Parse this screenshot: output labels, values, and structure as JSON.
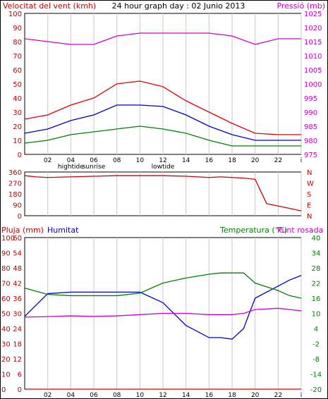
{
  "header": {
    "left_label": "Velocitat del vent (kmh)",
    "title": "24 hour graph day : 02 Junio 2013",
    "right_label": "Pressió (mb)"
  },
  "colors": {
    "wind_max": "#e00000",
    "wind_avg": "#0000c8",
    "wind_min": "#008000",
    "pressure": "#d000d0",
    "direction": "#d00000",
    "humidity": "#0000c8",
    "temperature": "#008000",
    "dew_point": "#d000d0",
    "rain": "#e00000",
    "left_axis": "#c00000",
    "right_axis_pressure": "#c000c0",
    "right_axis_temp": "#008000",
    "grid": "#c8c8c8"
  },
  "x_ticks": [
    "02",
    "04",
    "06",
    "08",
    "10",
    "12",
    "14",
    "16",
    "18",
    "20",
    "22",
    "i"
  ],
  "x_events": [
    "hightide",
    "sunrise",
    "lowtide"
  ],
  "panel2": {
    "direction_labels": [
      "N",
      "W",
      "S",
      "E",
      "N"
    ]
  },
  "panel3": {
    "rain_label": "Pluja (mm)",
    "humidity_label": "Humitat",
    "temp_label": "Temperatura (°C)",
    "dew_label": "Punt rosada"
  },
  "chart_data": [
    {
      "type": "line",
      "title": "24 hour graph day : 02 Junio 2013",
      "x": [
        0,
        2,
        4,
        6,
        8,
        10,
        12,
        14,
        16,
        18,
        20,
        22,
        24
      ],
      "x_tick_labels": [
        "02",
        "04",
        "06",
        "08",
        "10",
        "12",
        "14",
        "16",
        "18",
        "20",
        "22",
        "i"
      ],
      "ylabel": "Velocitat del vent (kmh)",
      "ylim": [
        0,
        100
      ],
      "y_ticks": [
        0,
        10,
        20,
        30,
        40,
        50,
        60,
        70,
        80,
        90,
        100
      ],
      "y2label": "Pressió (mb)",
      "y2lim": [
        975,
        1025
      ],
      "y2_ticks": [
        975,
        980,
        985,
        990,
        995,
        1000,
        1005,
        1010,
        1015,
        1020,
        1025
      ],
      "series": [
        {
          "values": [
            25,
            28,
            35,
            40,
            50,
            52,
            48,
            38,
            30,
            22,
            15,
            14,
            14
          ]
        },
        {
          "values": [
            15,
            18,
            24,
            28,
            35,
            35,
            34,
            28,
            20,
            14,
            10,
            10,
            10
          ]
        },
        {
          "values": [
            8,
            10,
            14,
            16,
            18,
            20,
            18,
            15,
            10,
            6,
            6,
            6,
            6
          ]
        },
        {
          "axis": "right",
          "values": [
            1016,
            1015,
            1014,
            1014,
            1017,
            1018,
            1018,
            1018,
            1018,
            1017,
            1014,
            1016,
            1016
          ]
        }
      ]
    },
    {
      "type": "line",
      "x": [
        0,
        1,
        2,
        4,
        6,
        8,
        10,
        12,
        14,
        16,
        17,
        18,
        19,
        20,
        20.5,
        21,
        22,
        23,
        24
      ],
      "ylim": [
        0,
        360
      ],
      "y_ticks": [
        0,
        90,
        180,
        270,
        360
      ],
      "y2_ticks": [
        "N",
        "W",
        "S",
        "E",
        "N"
      ],
      "series": [
        {
          "values": [
            330,
            320,
            315,
            320,
            325,
            330,
            330,
            330,
            325,
            315,
            320,
            315,
            310,
            300,
            200,
            100,
            80,
            60,
            40
          ]
        }
      ]
    },
    {
      "type": "line",
      "x": [
        0,
        2,
        4,
        6,
        8,
        10,
        12,
        14,
        16,
        17,
        18,
        19,
        20,
        22,
        23,
        24
      ],
      "ylim": [
        0,
        100
      ],
      "y_ticks": [
        0,
        10,
        20,
        30,
        40,
        50,
        60,
        70,
        80,
        90,
        100
      ],
      "y_tick_labels_rain": [
        "0",
        "6",
        "12",
        "18",
        "24",
        "30",
        "36",
        "42",
        "48",
        "54",
        "60"
      ],
      "y2lim": [
        -20,
        40
      ],
      "y2_ticks": [
        -20,
        -14,
        -8,
        -2,
        4,
        10,
        16,
        22,
        28,
        34,
        40
      ],
      "series": [
        {
          "axis": "left",
          "values": [
            0,
            0,
            0,
            0,
            0,
            0,
            0,
            0,
            0,
            0,
            0,
            0,
            0,
            0,
            0,
            0
          ]
        },
        {
          "axis": "left",
          "values": [
            48,
            63,
            64,
            64,
            64,
            64,
            57,
            42,
            34,
            34,
            33,
            40,
            60,
            68,
            72,
            75
          ]
        },
        {
          "axis": "right",
          "values": [
            20,
            17.5,
            17,
            17,
            17,
            18,
            22,
            24,
            25.5,
            26,
            26,
            26,
            22,
            19,
            17,
            16
          ]
        },
        {
          "axis": "right",
          "values": [
            8.5,
            8.7,
            9,
            8.8,
            9,
            9.5,
            10,
            10,
            9.5,
            9.5,
            9.5,
            10,
            11.5,
            12,
            11.5,
            11
          ]
        }
      ]
    }
  ]
}
